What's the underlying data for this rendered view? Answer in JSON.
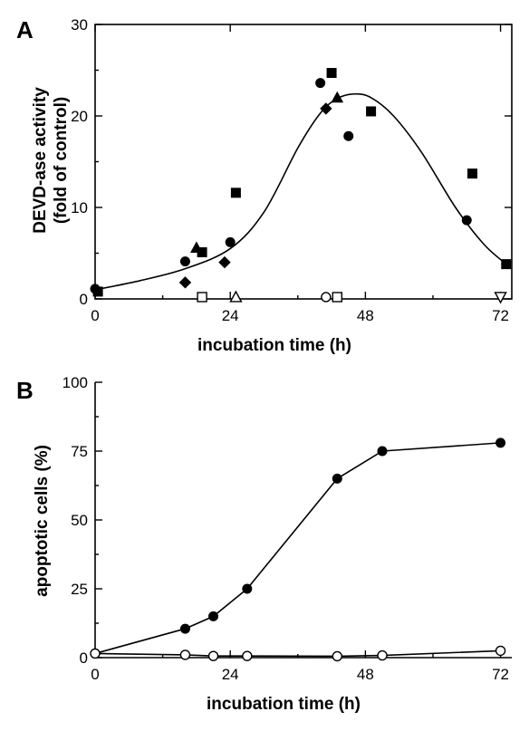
{
  "chart_data": [
    {
      "panel": "A",
      "type": "scatter",
      "xlabel": "incubation time (h)",
      "ylabel": "DEVD-ase activity",
      "ylabel2": "(fold of control)",
      "xlim": [
        0,
        74
      ],
      "ylim": [
        0,
        30
      ],
      "xticks": [
        0,
        24,
        48,
        72
      ],
      "xminorticks": [
        12,
        36,
        60
      ],
      "yticks": [
        0,
        10,
        20,
        30
      ],
      "yminorticks": [
        5,
        15,
        25
      ],
      "series": [
        {
          "marker": "filled-circle",
          "points": [
            [
              0,
              1.1
            ],
            [
              16,
              4.1
            ],
            [
              24,
              6.2
            ],
            [
              40,
              23.6
            ],
            [
              45,
              17.8
            ],
            [
              66,
              8.6
            ]
          ]
        },
        {
          "marker": "filled-square",
          "points": [
            [
              0.5,
              0.8
            ],
            [
              19,
              5.1
            ],
            [
              25,
              11.6
            ],
            [
              42,
              24.7
            ],
            [
              49,
              20.5
            ],
            [
              67,
              13.7
            ],
            [
              73,
              3.8
            ]
          ]
        },
        {
          "marker": "filled-triangle",
          "points": [
            [
              18,
              5.6
            ],
            [
              43,
              22.0
            ]
          ]
        },
        {
          "marker": "filled-diamond",
          "points": [
            [
              16,
              1.8
            ],
            [
              23,
              4.0
            ],
            [
              41,
              20.8
            ]
          ]
        },
        {
          "marker": "open-square",
          "points": [
            [
              19,
              0.2
            ],
            [
              43,
              0.2
            ]
          ]
        },
        {
          "marker": "open-triangle",
          "points": [
            [
              25,
              0.2
            ]
          ]
        },
        {
          "marker": "open-circle",
          "points": [
            [
              41,
              0.2
            ]
          ]
        },
        {
          "marker": "open-triangle-down",
          "points": [
            [
              72,
              0.2
            ]
          ]
        }
      ],
      "fit_curve": [
        [
          0,
          1.0
        ],
        [
          8,
          2.0
        ],
        [
          16,
          3.3
        ],
        [
          24,
          5.5
        ],
        [
          30,
          9.5
        ],
        [
          36,
          16.5
        ],
        [
          40,
          20.3
        ],
        [
          43,
          21.9
        ],
        [
          46,
          22.4
        ],
        [
          49,
          22.0
        ],
        [
          53,
          20.0
        ],
        [
          58,
          16.0
        ],
        [
          64,
          10.0
        ],
        [
          69,
          6.0
        ],
        [
          73,
          3.8
        ]
      ]
    },
    {
      "panel": "B",
      "type": "line",
      "xlabel": "incubation time (h)",
      "ylabel": "apoptotic cells (%)",
      "xlim": [
        0,
        74
      ],
      "ylim": [
        0,
        100
      ],
      "xticks": [
        0,
        24,
        48,
        72
      ],
      "xminorticks": [
        12,
        36,
        60
      ],
      "yticks": [
        0,
        25,
        50,
        75,
        100
      ],
      "yminorticks": [
        12.5,
        37.5,
        62.5,
        87.5
      ],
      "series": [
        {
          "marker": "filled-circle",
          "points": [
            [
              0,
              1.5
            ],
            [
              16,
              10.5
            ],
            [
              21,
              15.0
            ],
            [
              27,
              25.0
            ],
            [
              43,
              65.0
            ],
            [
              51,
              75.0
            ],
            [
              72,
              78.0
            ]
          ]
        },
        {
          "marker": "open-circle",
          "points": [
            [
              0,
              1.5
            ],
            [
              16,
              1.0
            ],
            [
              21,
              0.6
            ],
            [
              27,
              0.6
            ],
            [
              43,
              0.5
            ],
            [
              51,
              0.8
            ],
            [
              72,
              2.5
            ]
          ]
        }
      ]
    }
  ]
}
